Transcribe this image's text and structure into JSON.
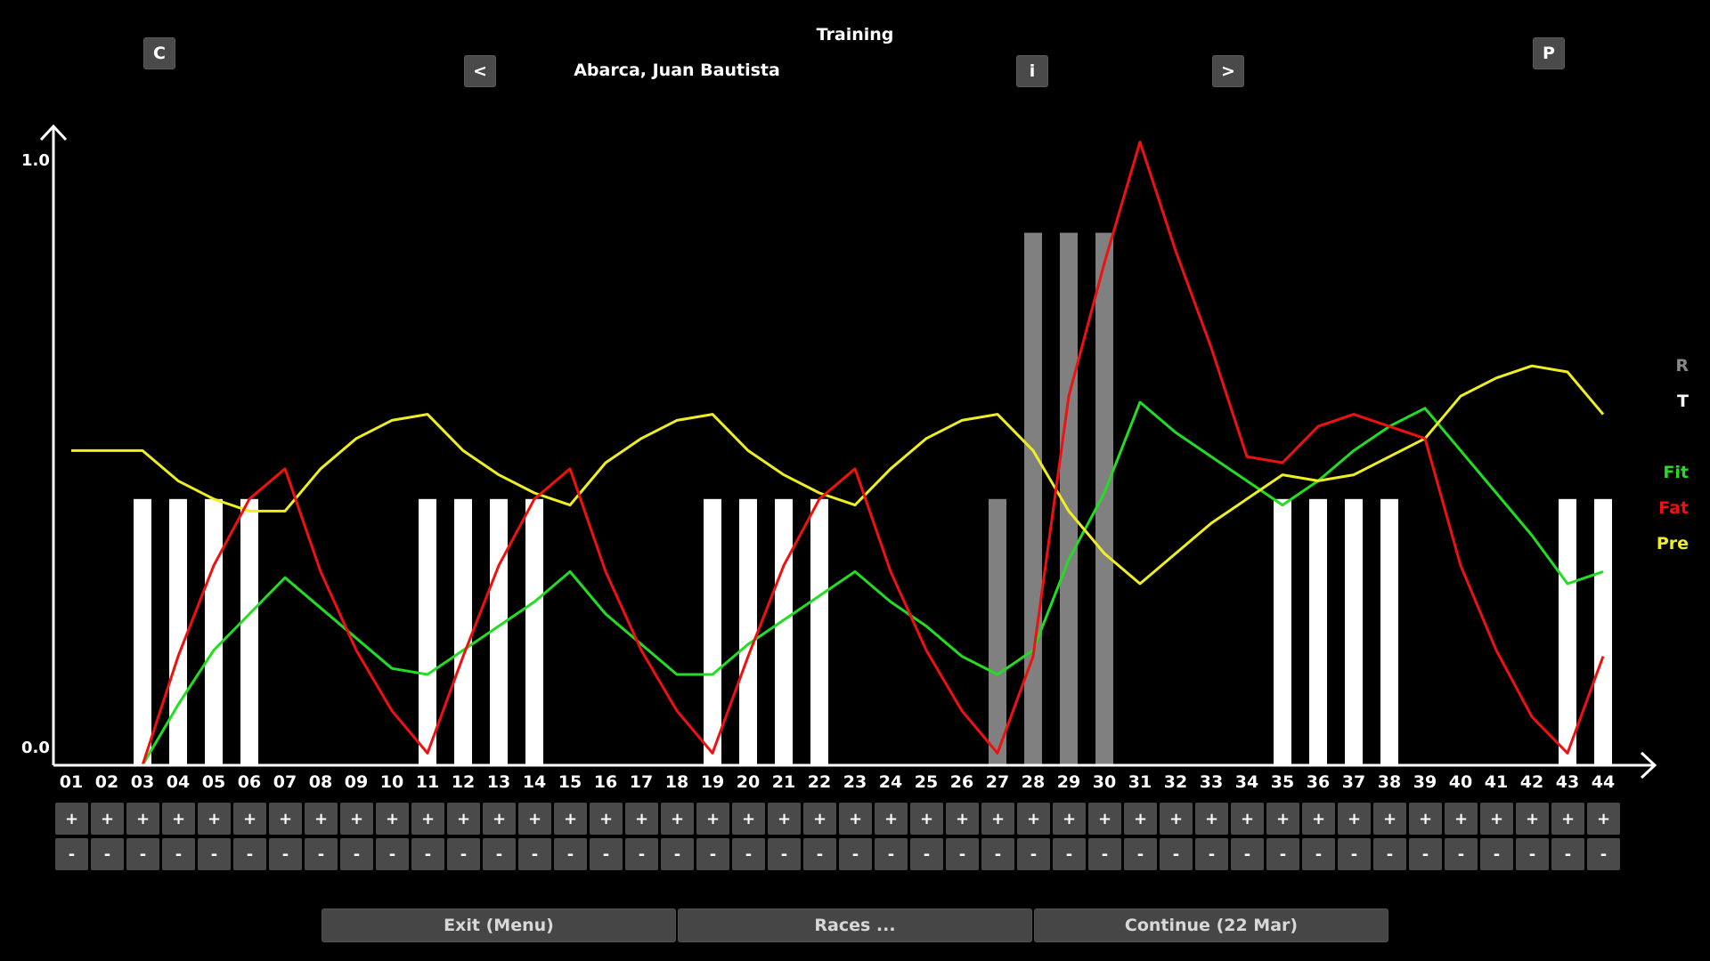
{
  "header": {
    "title": "Training",
    "rider": "Abarca, Juan Bautista"
  },
  "buttons": {
    "c": "C",
    "prev": "<",
    "info": "i",
    "next": ">",
    "p": "P",
    "plus": "+",
    "minus": "-"
  },
  "legend": {
    "r": "R",
    "t": "T",
    "fit": "Fit",
    "fat": "Fat",
    "pre": "Pre"
  },
  "chart_data": {
    "type": "line",
    "ylim": [
      0.0,
      1.0
    ],
    "y_tick_labels": [
      "0.0",
      "1.0"
    ],
    "categories": [
      "01",
      "02",
      "03",
      "04",
      "05",
      "06",
      "07",
      "08",
      "09",
      "10",
      "11",
      "12",
      "13",
      "14",
      "15",
      "16",
      "17",
      "18",
      "19",
      "20",
      "21",
      "22",
      "23",
      "24",
      "25",
      "26",
      "27",
      "28",
      "29",
      "30",
      "31",
      "32",
      "33",
      "34",
      "35",
      "36",
      "37",
      "38",
      "39",
      "40",
      "41",
      "42",
      "43",
      "44"
    ],
    "training": [
      0,
      0,
      0.44,
      0.44,
      0.44,
      0.44,
      0,
      0,
      0,
      0,
      0.44,
      0.44,
      0.44,
      0.44,
      0,
      0,
      0,
      0,
      0.44,
      0.44,
      0.44,
      0.44,
      0,
      0,
      0,
      0,
      0,
      0,
      0,
      0,
      0,
      0,
      0,
      0,
      0.44,
      0.44,
      0.44,
      0.44,
      0,
      0,
      0,
      0,
      0.44,
      0.44
    ],
    "races": [
      0,
      0,
      0,
      0,
      0,
      0,
      0,
      0,
      0,
      0,
      0,
      0,
      0,
      0,
      0,
      0,
      0,
      0,
      0,
      0,
      0,
      0,
      0,
      0,
      0,
      0,
      0.44,
      0.88,
      0.88,
      0.88,
      0,
      0,
      0,
      0,
      0,
      0,
      0,
      0,
      0,
      0,
      0,
      0,
      0,
      0
    ],
    "series": [
      {
        "name": "Fit",
        "color": "#22dd22",
        "values": [
          0,
          0,
          0,
          0.1,
          0.19,
          0.25,
          0.31,
          0.26,
          0.21,
          0.16,
          0.15,
          0.19,
          0.23,
          0.27,
          0.32,
          0.25,
          0.2,
          0.15,
          0.15,
          0.2,
          0.24,
          0.28,
          0.32,
          0.27,
          0.23,
          0.18,
          0.15,
          0.19,
          0.34,
          0.45,
          0.6,
          0.55,
          0.51,
          0.47,
          0.43,
          0.47,
          0.52,
          0.56,
          0.59,
          0.52,
          0.45,
          0.38,
          0.3,
          0.32
        ]
      },
      {
        "name": "Fat",
        "color": "#ee1111",
        "values": [
          0,
          0,
          0,
          0.18,
          0.33,
          0.44,
          0.49,
          0.32,
          0.19,
          0.09,
          0.02,
          0.18,
          0.33,
          0.44,
          0.49,
          0.32,
          0.19,
          0.09,
          0.02,
          0.18,
          0.33,
          0.44,
          0.49,
          0.32,
          0.19,
          0.09,
          0.02,
          0.18,
          0.61,
          0.83,
          1.03,
          0.85,
          0.69,
          0.51,
          0.5,
          0.56,
          0.58,
          0.56,
          0.54,
          0.33,
          0.19,
          0.08,
          0.02,
          0.18
        ]
      },
      {
        "name": "Pre",
        "color": "#eeee22",
        "values": [
          0.52,
          0.52,
          0.52,
          0.47,
          0.44,
          0.42,
          0.42,
          0.49,
          0.54,
          0.57,
          0.58,
          0.52,
          0.48,
          0.45,
          0.43,
          0.5,
          0.54,
          0.57,
          0.58,
          0.52,
          0.48,
          0.45,
          0.43,
          0.49,
          0.54,
          0.57,
          0.58,
          0.52,
          0.42,
          0.35,
          0.3,
          0.35,
          0.4,
          0.44,
          0.48,
          0.47,
          0.48,
          0.51,
          0.54,
          0.61,
          0.64,
          0.66,
          0.65,
          0.58
        ]
      }
    ]
  },
  "footer": {
    "exit": "Exit (Menu)",
    "races": "Races ...",
    "continue": "Continue (22 Mar)"
  }
}
